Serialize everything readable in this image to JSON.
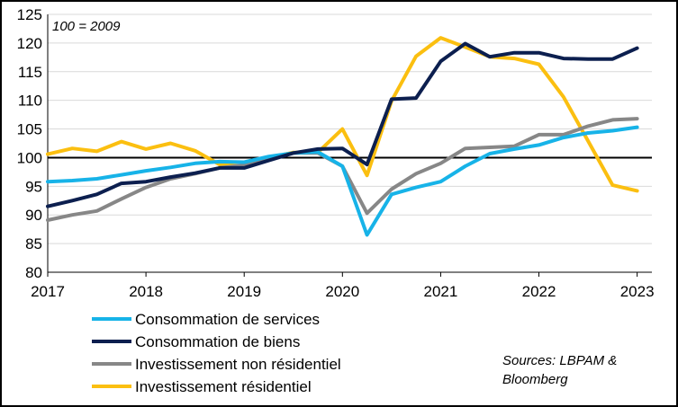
{
  "chart_data": {
    "type": "line",
    "annotation": "100 = 2009",
    "source_line1": "Sources: LBPAM &",
    "source_line2": "Bloomberg",
    "ylim": [
      80,
      125
    ],
    "y_ticks": [
      "80",
      "85",
      "90",
      "95",
      "100",
      "105",
      "110",
      "115",
      "120",
      "125"
    ],
    "xlim": [
      2017.0,
      2023.15
    ],
    "x_ticks": [
      "2017",
      "2018",
      "2019",
      "2020",
      "2021",
      "2022",
      "2023"
    ],
    "reference_line": 100,
    "x": [
      2017.0,
      2017.25,
      2017.5,
      2017.75,
      2018.0,
      2018.25,
      2018.5,
      2018.75,
      2019.0,
      2019.25,
      2019.5,
      2019.75,
      2020.0,
      2020.25,
      2020.5,
      2020.75,
      2021.0,
      2021.25,
      2021.5,
      2021.75,
      2022.0,
      2022.25,
      2022.5,
      2022.75,
      2023.0
    ],
    "series": [
      {
        "name": "Consommation de services",
        "color": "#17b3e8",
        "values": [
          95.8,
          96.0,
          96.3,
          97.0,
          97.7,
          98.3,
          99.0,
          99.3,
          99.2,
          100.2,
          100.8,
          101.0,
          98.5,
          86.5,
          93.6,
          94.8,
          95.8,
          98.5,
          100.7,
          101.5,
          102.2,
          103.5,
          104.3,
          104.7,
          105.3
        ]
      },
      {
        "name": "Consommation de biens",
        "color": "#0c1f4f",
        "values": [
          91.5,
          92.5,
          93.6,
          95.5,
          95.8,
          96.6,
          97.3,
          98.2,
          98.2,
          99.5,
          100.8,
          101.5,
          101.6,
          98.8,
          110.2,
          110.4,
          116.8,
          119.9,
          117.6,
          118.3,
          118.3,
          117.3,
          117.2,
          117.2,
          119.1
        ]
      },
      {
        "name": "Investissement non résidentiel",
        "color": "#878787",
        "values": [
          89.1,
          90.0,
          90.7,
          92.8,
          94.8,
          96.3,
          97.2,
          98.2,
          98.7,
          99.8,
          100.8,
          100.8,
          98.5,
          90.3,
          94.5,
          97.2,
          99.0,
          101.6,
          101.8,
          102.0,
          104.0,
          104.0,
          105.5,
          106.6,
          106.8
        ]
      },
      {
        "name": "Investissement résidentiel",
        "color": "#fbbf10",
        "values": [
          100.6,
          101.6,
          101.1,
          102.8,
          101.5,
          102.5,
          101.2,
          98.8,
          98.5,
          100.0,
          100.9,
          100.9,
          105.0,
          96.9,
          109.9,
          117.7,
          120.9,
          119.3,
          117.6,
          117.3,
          116.3,
          110.6,
          102.9,
          95.2,
          94.2
        ]
      }
    ]
  }
}
